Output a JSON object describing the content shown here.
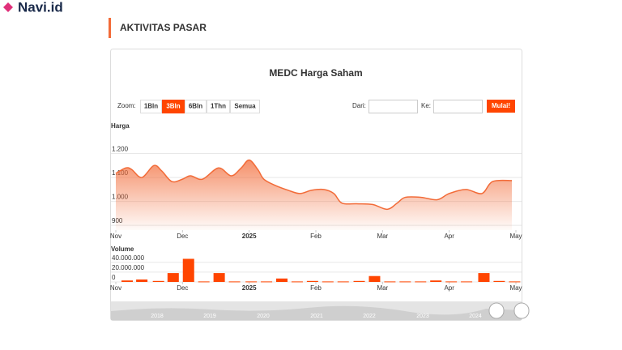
{
  "header": {
    "logo": "Navi.id",
    "section": "AKTIVITAS PASAR"
  },
  "controls": {
    "zoom_label": "Zoom:",
    "buttons": [
      "1Bln",
      "3Bln",
      "6Bln",
      "1Thn",
      "Semua"
    ],
    "active": 1,
    "from_label": "Dari:",
    "to_label": "Ke:",
    "submit": "Mulai!"
  },
  "chart_data": [
    {
      "type": "area",
      "title": "MEDC Harga Saham",
      "y_label": "Harga",
      "color": "#f26b38",
      "x": [
        0,
        0.15,
        0.24,
        0.39,
        0.57,
        0.69,
        0.84,
        1.0,
        1.12,
        1.3,
        1.54,
        1.73,
        1.88,
        2.0,
        2.13,
        2.22,
        2.39,
        2.58,
        2.76,
        2.94,
        3.12,
        3.27,
        3.39,
        3.61,
        3.85,
        4.07,
        4.22,
        4.34,
        4.58,
        4.82,
        5.0,
        5.25,
        5.49,
        5.65,
        5.94
      ],
      "values": [
        1117,
        1140,
        1133,
        1100,
        1150,
        1127,
        1083,
        1093,
        1107,
        1093,
        1140,
        1107,
        1140,
        1173,
        1133,
        1093,
        1067,
        1047,
        1033,
        1047,
        1050,
        1033,
        993,
        990,
        987,
        967,
        993,
        1017,
        1017,
        1007,
        1033,
        1050,
        1033,
        1083,
        1087
      ],
      "xlim": [
        0,
        6
      ],
      "xticks": [
        {
          "value": 0,
          "label": "Nov"
        },
        {
          "value": 1,
          "label": "Dec"
        },
        {
          "value": 2,
          "label": "2025"
        },
        {
          "value": 3,
          "label": "Feb"
        },
        {
          "value": 4,
          "label": "Mar"
        },
        {
          "value": 5,
          "label": "Apr"
        },
        {
          "value": 6,
          "label": "May"
        }
      ],
      "ylim": [
        880,
        1290
      ],
      "yticks": [
        900,
        {
          "value": 1000,
          "label": "1.000"
        },
        {
          "value": 1100,
          "label": "1.100"
        },
        {
          "value": 1200,
          "label": "1.200"
        }
      ],
      "grid": true
    },
    {
      "type": "bar",
      "y_label": "Volume",
      "color": "#ff4500",
      "x": [
        0.17,
        0.39,
        0.64,
        0.86,
        1.09,
        1.32,
        1.55,
        1.78,
        2.03,
        2.26,
        2.49,
        2.72,
        2.95,
        3.18,
        3.41,
        3.65,
        3.88,
        4.11,
        4.34,
        4.57,
        4.8,
        5.03,
        5.26,
        5.52,
        5.75,
        5.98
      ],
      "values": [
        3000000,
        5000000,
        2000000,
        18000000,
        47000000,
        1000000,
        18000000,
        1000000,
        1000000,
        1000000,
        7000000,
        1000000,
        2000000,
        1000000,
        1000000,
        2000000,
        12000000,
        1000000,
        1000000,
        1000000,
        3000000,
        1000000,
        1000000,
        18000000,
        2000000,
        1000000
      ],
      "xlim": [
        0,
        6
      ],
      "xticks": [
        {
          "value": 0,
          "label": "Nov"
        },
        {
          "value": 1,
          "label": "Dec"
        },
        {
          "value": 2,
          "label": "2025"
        },
        {
          "value": 3,
          "label": "Feb"
        },
        {
          "value": 4,
          "label": "Mar"
        },
        {
          "value": 5,
          "label": "Apr"
        },
        {
          "value": 6,
          "label": "May"
        }
      ],
      "ylim": [
        0,
        56000000
      ],
      "yticks": [
        0,
        {
          "value": 20000000,
          "label": "20.000.000"
        },
        {
          "value": 40000000,
          "label": "40.000.000"
        }
      ],
      "grid": true
    }
  ],
  "navigator": {
    "years": [
      "2018",
      "2019",
      "2020",
      "2021",
      "2022",
      "2023",
      "2024"
    ]
  }
}
